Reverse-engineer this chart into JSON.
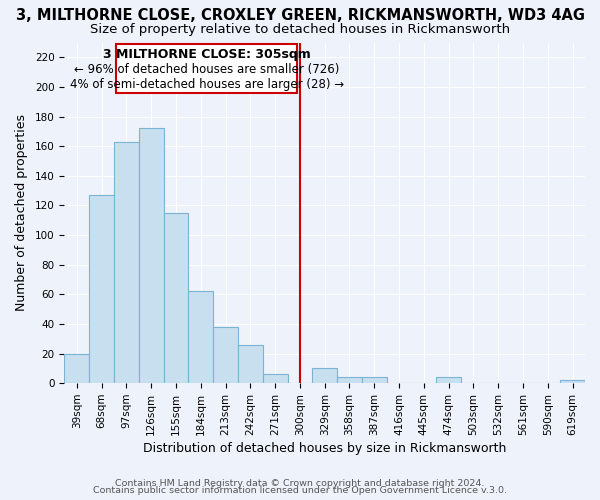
{
  "title": "3, MILTHORNE CLOSE, CROXLEY GREEN, RICKMANSWORTH, WD3 4AG",
  "subtitle": "Size of property relative to detached houses in Rickmansworth",
  "xlabel": "Distribution of detached houses by size in Rickmansworth",
  "ylabel": "Number of detached properties",
  "bar_color": "#c8dff0",
  "bar_edge_color": "#7ab4d4",
  "categories": [
    "39sqm",
    "68sqm",
    "97sqm",
    "126sqm",
    "155sqm",
    "184sqm",
    "213sqm",
    "242sqm",
    "271sqm",
    "300sqm",
    "329sqm",
    "358sqm",
    "387sqm",
    "416sqm",
    "445sqm",
    "474sqm",
    "503sqm",
    "532sqm",
    "561sqm",
    "590sqm",
    "619sqm"
  ],
  "values": [
    20,
    127,
    163,
    172,
    115,
    62,
    38,
    26,
    6,
    0,
    10,
    4,
    4,
    0,
    0,
    4,
    0,
    0,
    0,
    0,
    2
  ],
  "ylim": [
    0,
    230
  ],
  "yticks": [
    0,
    20,
    40,
    60,
    80,
    100,
    120,
    140,
    160,
    180,
    200,
    220
  ],
  "vline_color": "#cc0000",
  "annotation_title": "3 MILTHORNE CLOSE: 305sqm",
  "annotation_line1": "← 96% of detached houses are smaller (726)",
  "annotation_line2": "4% of semi-detached houses are larger (28) →",
  "footer1": "Contains HM Land Registry data © Crown copyright and database right 2024.",
  "footer2": "Contains public sector information licensed under the Open Government Licence v.3.0.",
  "background_color": "#eef2fb",
  "grid_color": "#ffffff",
  "title_fontsize": 10.5,
  "subtitle_fontsize": 9.5,
  "tick_fontsize": 7.5,
  "label_fontsize": 9,
  "footer_fontsize": 6.8
}
